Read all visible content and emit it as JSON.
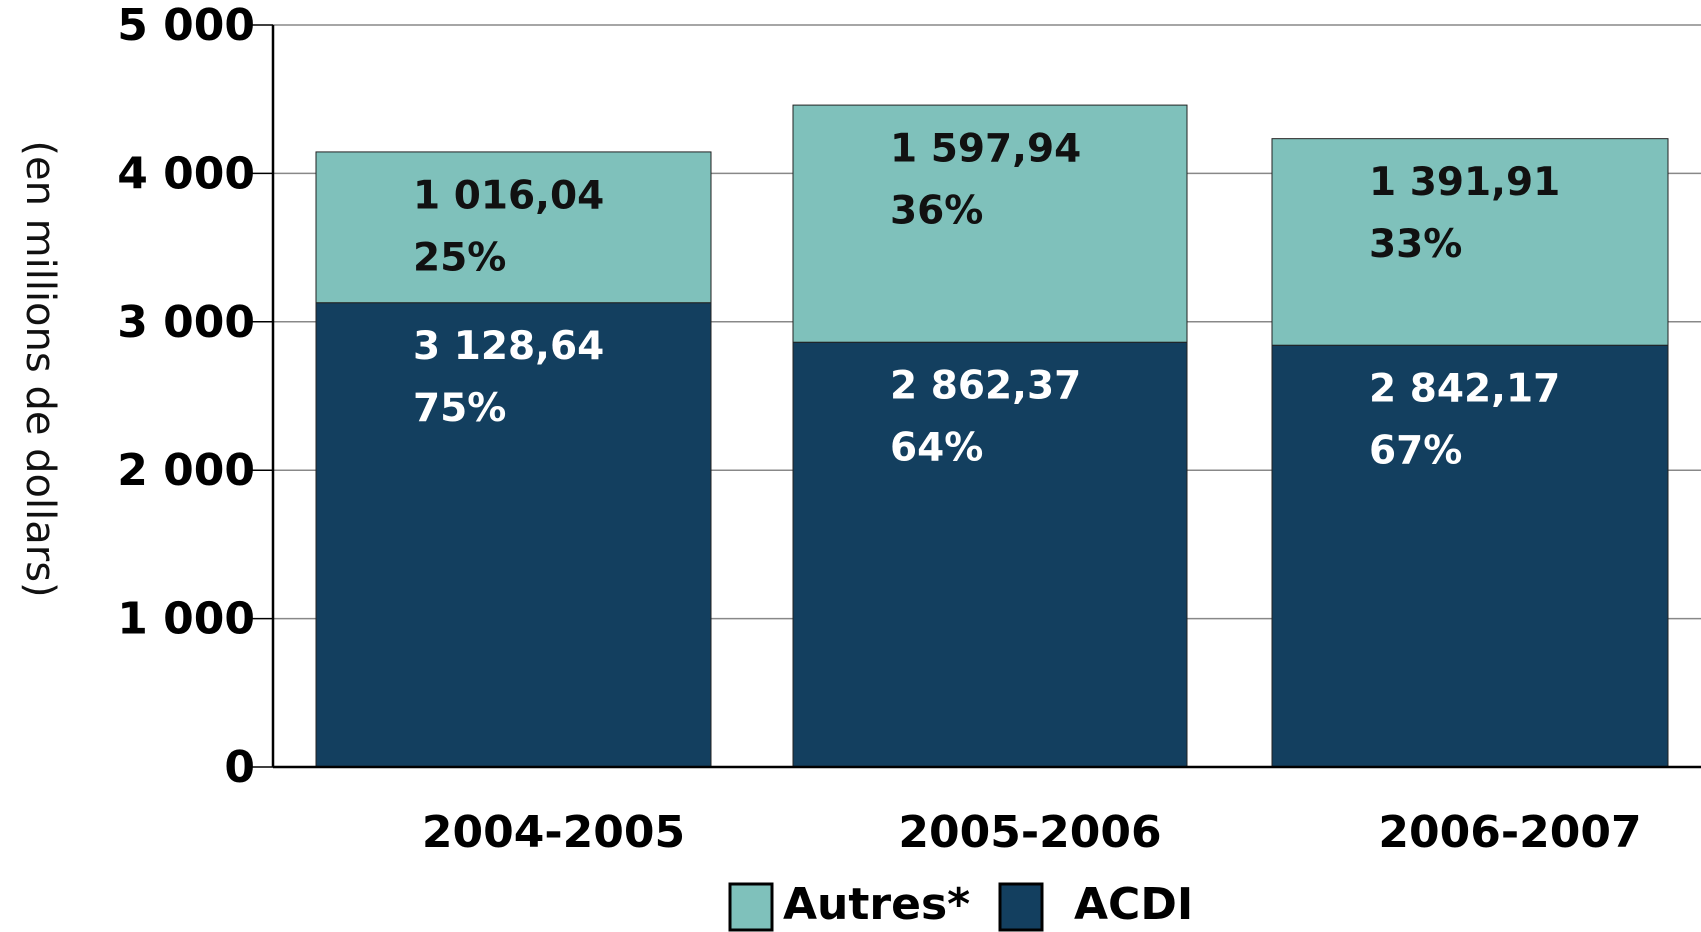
{
  "chart_data": {
    "type": "stacked_bar",
    "y_label": "(en millions de dollars)",
    "categories": [
      "2004-2005",
      "2005-2006",
      "2006-2007"
    ],
    "series": [
      {
        "name": "ACDI",
        "color": "#133f5f",
        "label_color": "#ffffff",
        "values": [
          3128.64,
          2862.37,
          2842.17
        ],
        "value_labels": [
          "3 128,64",
          "2 862,37",
          "2 842,17"
        ],
        "percent_labels": [
          "75%",
          "64%",
          "67%"
        ]
      },
      {
        "name": "Autres*",
        "color": "#7fc1bb",
        "label_color": "#111111",
        "values": [
          1016.04,
          1597.94,
          1391.91
        ],
        "value_labels": [
          "1 016,04",
          "1 597,94",
          "1 391,91"
        ],
        "percent_labels": [
          "25%",
          "36%",
          "33%"
        ]
      }
    ],
    "legend_order": [
      1,
      0
    ],
    "ylim": [
      0,
      5000
    ],
    "yticks": [
      0,
      {
        "value": 1000,
        "label": "1 000"
      },
      {
        "value": 2000,
        "label": "2 000"
      },
      {
        "value": 3000,
        "label": "3 000"
      },
      {
        "value": 4000,
        "label": "4 000"
      },
      {
        "value": 5000,
        "label": "5 000"
      }
    ],
    "grid": true
  }
}
